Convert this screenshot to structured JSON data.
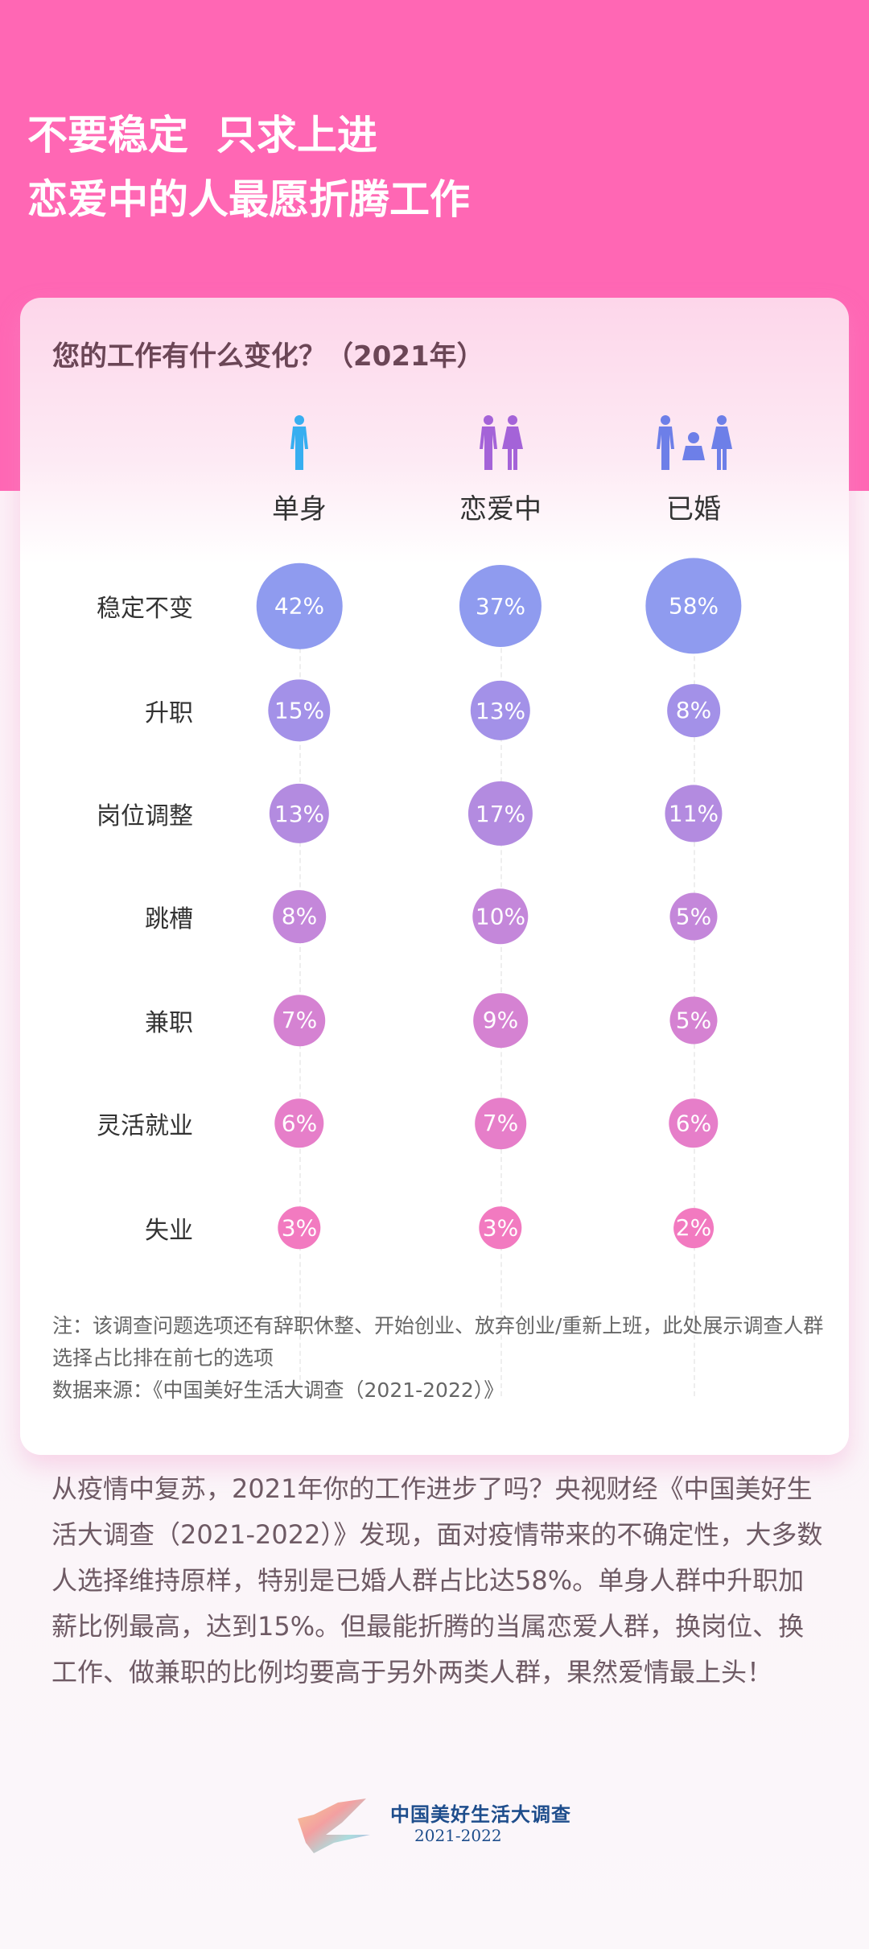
{
  "header": {
    "title_lines": [
      "不要稳定  只求上进",
      "恋爱中的人最愿折腾工作"
    ]
  },
  "chart_data": {
    "type": "bubble-table",
    "title": "您的工作有什么变化？（2021年）",
    "groups": [
      {
        "label": "单身",
        "icon": "single-person-icon",
        "color": "#37aef0"
      },
      {
        "label": "恋爱中",
        "icon": "couple-icon",
        "color": "#a463d8"
      },
      {
        "label": "已婚",
        "icon": "family-icon",
        "color": "#6d7fe8"
      }
    ],
    "categories": [
      "稳定不变",
      "升职",
      "岗位调整",
      "跳槽",
      "兼职",
      "灵活就业",
      "失业"
    ],
    "row_colors": [
      "#8f9bef",
      "#a391e8",
      "#b38be0",
      "#c487da",
      "#d582d2",
      "#e67ec9",
      "#f27ac0"
    ],
    "values": [
      [
        42,
        37,
        58
      ],
      [
        15,
        13,
        8
      ],
      [
        13,
        17,
        11
      ],
      [
        8,
        10,
        5
      ],
      [
        7,
        9,
        5
      ],
      [
        6,
        7,
        6
      ],
      [
        3,
        3,
        2
      ]
    ],
    "unit": "%"
  },
  "notes": [
    "注：该调查问题选项还有辞职休整、开始创业、放弃创业/重新上班，此处展示调查人群选择占比排在前七的选项",
    "数据来源：《中国美好生活大调查（2021-2022）》"
  ],
  "paragraph": "从疫情中复苏，2021年你的工作进步了吗？央视财经《中国美好生活大调查（2021-2022）》发现，面对疫情带来的不确定性，大多数人选择维持原样，特别是已婚人群占比达58%。单身人群中升职加薪比例最高，达到15%。但最能折腾的当属恋爱人群，换岗位、换工作、做兼职的比例均要高于另外两类人群，果然爱情最上头！",
  "logo": {
    "name": "中国美好生活大调查",
    "years": "2021-2022"
  }
}
